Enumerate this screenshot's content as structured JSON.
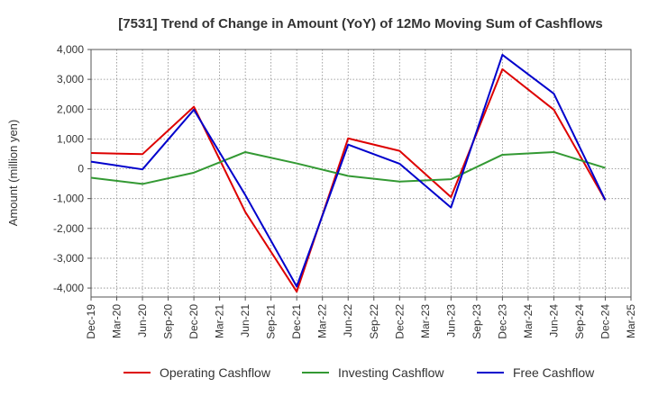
{
  "chart_data": {
    "type": "line",
    "title": "[7531]  Trend of Change in Amount (YoY) of 12Mo Moving Sum of Cashflows",
    "xlabel": "",
    "ylabel": "Amount (million yen)",
    "ylim": [
      -4300,
      4000
    ],
    "yticks": [
      4000,
      3000,
      2000,
      1000,
      0,
      -1000,
      -2000,
      -3000,
      -4000
    ],
    "ytick_labels": [
      "4,000",
      "3,000",
      "2,000",
      "1,000",
      "0",
      "-1,000",
      "-2,000",
      "-3,000",
      "-4,000"
    ],
    "categories": [
      "Dec-19",
      "Mar-20",
      "Jun-20",
      "Sep-20",
      "Dec-20",
      "Mar-21",
      "Jun-21",
      "Sep-21",
      "Dec-21",
      "Mar-22",
      "Jun-22",
      "Sep-22",
      "Dec-22",
      "Mar-23",
      "Jun-23",
      "Sep-23",
      "Dec-23",
      "Mar-24",
      "Jun-24",
      "Sep-24",
      "Dec-24",
      "Mar-25"
    ],
    "grid": true,
    "legend_position": "bottom",
    "series": [
      {
        "name": "Operating Cashflow",
        "color": "#dd0000",
        "x": [
          "Dec-19",
          "Jun-20",
          "Dec-20",
          "Jun-21",
          "Dec-21",
          "Jun-22",
          "Dec-22",
          "Jun-23",
          "Dec-23",
          "Jun-24",
          "Dec-24"
        ],
        "values": [
          530,
          490,
          2080,
          -1450,
          -4120,
          1020,
          600,
          -950,
          3340,
          1980,
          -1050
        ]
      },
      {
        "name": "Investing Cashflow",
        "color": "#339933",
        "x": [
          "Dec-19",
          "Jun-20",
          "Dec-20",
          "Jun-21",
          "Dec-21",
          "Jun-22",
          "Dec-22",
          "Jun-23",
          "Dec-23",
          "Jun-24",
          "Dec-24"
        ],
        "values": [
          -300,
          -510,
          -130,
          560,
          180,
          -240,
          -430,
          -350,
          470,
          560,
          30
        ]
      },
      {
        "name": "Free Cashflow",
        "color": "#0000cc",
        "x": [
          "Dec-19",
          "Jun-20",
          "Dec-20",
          "Jun-21",
          "Dec-21",
          "Jun-22",
          "Dec-22",
          "Jun-23",
          "Dec-23",
          "Jun-24",
          "Dec-24"
        ],
        "values": [
          240,
          -20,
          1980,
          -880,
          -3950,
          810,
          170,
          -1300,
          3820,
          2520,
          -1050
        ]
      }
    ]
  }
}
